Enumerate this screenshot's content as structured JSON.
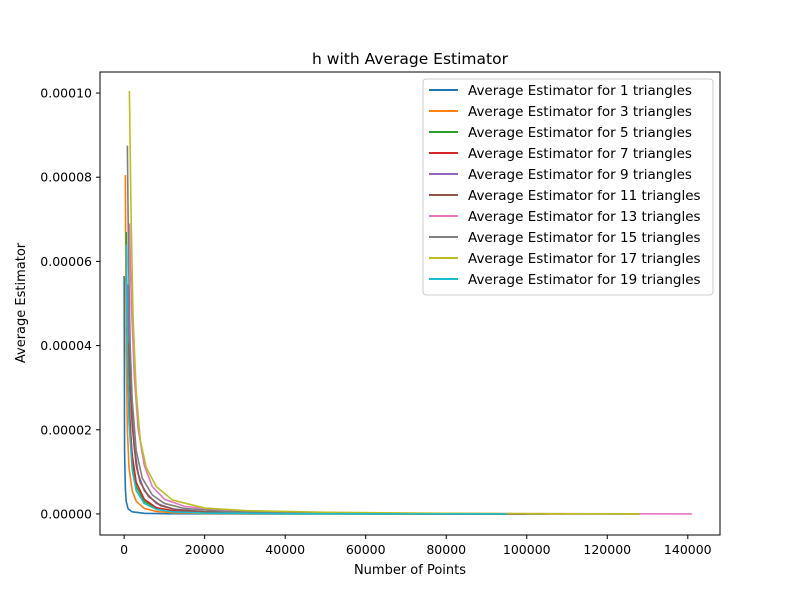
{
  "chart_data": {
    "type": "line",
    "title": "h with Average Estimator",
    "xlabel": "Number of Points",
    "ylabel": "Average Estimator",
    "xlim": [
      -6000,
      148000
    ],
    "ylim": [
      -5e-06,
      0.000105
    ],
    "xticks": [
      0,
      20000,
      40000,
      60000,
      80000,
      100000,
      120000,
      140000
    ],
    "xtick_labels": [
      "0",
      "20000",
      "40000",
      "60000",
      "80000",
      "100000",
      "120000",
      "140000"
    ],
    "yticks": [
      0,
      2e-05,
      4e-05,
      6e-05,
      8e-05,
      0.0001
    ],
    "ytick_labels": [
      "0.00000",
      "0.00002",
      "0.00004",
      "0.00006",
      "0.00008",
      "0.00010"
    ],
    "grid": false,
    "legend_position": "top-right",
    "series": [
      {
        "name": "Average Estimator for 1 triangles",
        "color": "#1f77b4",
        "x": [
          0,
          100,
          300,
          500,
          1000,
          2000,
          5000,
          10000,
          20000,
          50000,
          95000
        ],
        "y": [
          5.65e-05,
          1.5e-05,
          6e-06,
          3e-06,
          1.2e-06,
          5e-07,
          1.5e-07,
          6e-08,
          2e-08,
          5e-09,
          0.0
        ]
      },
      {
        "name": "Average Estimator for 3 triangles",
        "color": "#ff7f0e",
        "x": [
          300,
          500,
          800,
          1200,
          2000,
          3000,
          5000,
          8000,
          12000,
          20000,
          40000,
          70000,
          110000
        ],
        "y": [
          8.05e-05,
          4e-05,
          2e-05,
          1.1e-05,
          5.5e-06,
          3e-06,
          1.3e-06,
          6e-07,
          3e-07,
          1.2e-07,
          4e-08,
          1e-08,
          0.0
        ]
      },
      {
        "name": "Average Estimator for 5 triangles",
        "color": "#2ca02c",
        "x": [
          500,
          800,
          1200,
          2000,
          3000,
          5000,
          8000,
          12000,
          20000,
          40000,
          70000,
          105000
        ],
        "y": [
          6.7e-05,
          4.5e-05,
          2.5e-05,
          1.2e-05,
          6.5e-06,
          3e-06,
          1.3e-06,
          7e-07,
          3e-07,
          1e-07,
          3e-08,
          0.0
        ]
      },
      {
        "name": "Average Estimator for 7 triangles",
        "color": "#d62728",
        "x": [
          700,
          1000,
          1500,
          2000,
          3000,
          5000,
          8000,
          12000,
          20000,
          40000,
          70000,
          100000
        ],
        "y": [
          4.45e-05,
          3.2e-05,
          2.1e-05,
          1.4e-05,
          7.5e-06,
          3.5e-06,
          1.5e-06,
          8e-07,
          3e-07,
          1e-07,
          3e-08,
          0.0
        ]
      },
      {
        "name": "Average Estimator for 9 triangles",
        "color": "#9467bd",
        "x": [
          900,
          1200,
          1800,
          2500,
          3500,
          5000,
          8000,
          12000,
          20000,
          40000,
          70000,
          100000
        ],
        "y": [
          5.45e-05,
          4e-05,
          2.6e-05,
          1.6e-05,
          9.5e-06,
          5.5e-06,
          2.5e-06,
          1.2e-06,
          5e-07,
          1.5e-07,
          5e-08,
          0.0
        ]
      },
      {
        "name": "Average Estimator for 11 triangles",
        "color": "#8c564b",
        "x": [
          1100,
          1500,
          2000,
          3000,
          4000,
          6000,
          9000,
          13000,
          20000,
          40000,
          70000,
          100000
        ],
        "y": [
          4.05e-05,
          3e-05,
          2.1e-05,
          1.15e-05,
          7.5e-06,
          4.2e-06,
          2e-06,
          1e-06,
          5e-07,
          1.5e-07,
          5e-08,
          0.0
        ]
      },
      {
        "name": "Average Estimator for 13 triangles",
        "color": "#e377c2",
        "x": [
          1300,
          1800,
          2500,
          3500,
          5000,
          7000,
          10000,
          15000,
          25000,
          50000,
          90000,
          141000
        ],
        "y": [
          6.9e-05,
          5e-05,
          3.3e-05,
          2e-05,
          1.15e-05,
          6.5e-06,
          3.5e-06,
          1.8e-06,
          8e-07,
          2.5e-07,
          8e-08,
          0.0
        ]
      },
      {
        "name": "Average Estimator for 15 triangles",
        "color": "#7f7f7f",
        "x": [
          800,
          1100,
          1500,
          2000,
          3000,
          4500,
          7000,
          10000,
          15000,
          25000,
          50000,
          90000,
          128000
        ],
        "y": [
          8.75e-05,
          6e-05,
          4e-05,
          2.7e-05,
          1.5e-05,
          8.5e-06,
          4.5e-06,
          2.5e-06,
          1.3e-06,
          6e-07,
          2e-07,
          5e-08,
          0.0
        ]
      },
      {
        "name": "Average Estimator for 17 triangles",
        "color": "#bcbd22",
        "x": [
          1300,
          1700,
          2200,
          3000,
          4000,
          5500,
          8000,
          12000,
          20000,
          30000,
          50000,
          80000,
          128000
        ],
        "y": [
          0.0001005,
          7.2e-05,
          4.7e-05,
          2.9e-05,
          1.75e-05,
          1.1e-05,
          6.5e-06,
          3.3e-06,
          1.4e-06,
          8e-07,
          4e-07,
          1.5e-07,
          0.0
        ]
      },
      {
        "name": "Average Estimator for 19 triangles",
        "color": "#17becf",
        "x": [
          500,
          800,
          1200,
          2000,
          3000,
          5000,
          8000,
          12000,
          20000,
          40000,
          70000,
          95000
        ],
        "y": [
          6.4e-05,
          4e-05,
          2.2e-05,
          1.05e-05,
          5.5e-06,
          2.5e-06,
          1.1e-06,
          5e-07,
          2e-07,
          6e-08,
          2e-08,
          0.0
        ]
      }
    ]
  }
}
